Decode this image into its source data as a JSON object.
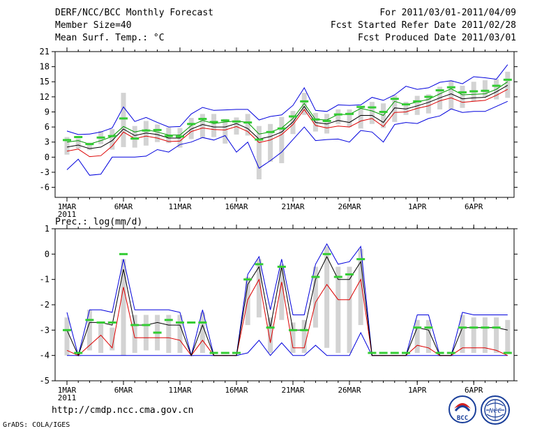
{
  "header": {
    "title": "DERF/NCC/BCC Monthly Forecast",
    "member_size": "Member Size=40",
    "period": "For 2011/03/01-2011/04/09",
    "start_date": "Fcst Started Refer Date 2011/02/28",
    "produced_date": "Fcst Produced Date 2011/03/01"
  },
  "footer": {
    "url": "http://cmdp.ncc.cma.gov.cn",
    "credit": "GrADS: COLA/IGES",
    "logo_bcc": "BCC",
    "logo_ncc": "NCC"
  },
  "colors": {
    "ensemble_max_min": "#0000dd",
    "ensemble_mean": "#000000",
    "spread_lower": "#dd0000",
    "median_mark": "#33cc33",
    "box": "#d3d3d3"
  },
  "chart_data": [
    {
      "type": "box-line",
      "title": "Mean Surf. Temp.: °C",
      "xlabel": "",
      "ylabel": "°C",
      "ylim": [
        -8,
        21
      ],
      "yticks": [
        -6,
        -3,
        0,
        3,
        6,
        9,
        12,
        15,
        18,
        21
      ],
      "x_tick_labels": [
        "1MAR",
        "6MAR",
        "11MAR",
        "16MAR",
        "21MAR",
        "26MAR",
        "1APR",
        "6APR"
      ],
      "x_tick_days": [
        1,
        6,
        11,
        16,
        21,
        26,
        32,
        37
      ],
      "year_label": "2011",
      "days": [
        1,
        2,
        3,
        4,
        5,
        6,
        7,
        8,
        9,
        10,
        11,
        12,
        13,
        14,
        15,
        16,
        17,
        18,
        19,
        20,
        21,
        22,
        23,
        24,
        25,
        26,
        27,
        28,
        29,
        30,
        31,
        32,
        33,
        34,
        35,
        36,
        37,
        38,
        39,
        40
      ],
      "series": [
        {
          "name": "max",
          "values": [
            5.2,
            4.5,
            4.6,
            5.0,
            5.8,
            10.0,
            7.1,
            7.9,
            6.9,
            6.0,
            6.1,
            8.6,
            9.9,
            9.3,
            9.4,
            9.5,
            9.5,
            7.4,
            8.1,
            8.4,
            10.3,
            13.8,
            9.3,
            9.1,
            10.4,
            10.3,
            10.4,
            11.9,
            11.3,
            12.4,
            14.1,
            13.5,
            13.8,
            14.9,
            15.2,
            14.6,
            16.0,
            15.8,
            15.5,
            18.4
          ]
        },
        {
          "name": "mean",
          "values": [
            2.0,
            2.4,
            1.7,
            2.0,
            3.3,
            5.6,
            4.3,
            4.8,
            4.5,
            3.8,
            3.8,
            5.6,
            6.5,
            6.0,
            6.0,
            6.7,
            5.7,
            3.6,
            4.1,
            5.0,
            7.0,
            10.1,
            6.9,
            6.6,
            7.3,
            6.9,
            8.3,
            8.3,
            6.9,
            9.8,
            9.6,
            10.2,
            10.9,
            11.8,
            12.6,
            11.6,
            11.8,
            11.9,
            13.0,
            14.3
          ]
        },
        {
          "name": "upper",
          "values": [
            3.0,
            3.3,
            2.6,
            3.3,
            4.1,
            6.1,
            5.0,
            5.5,
            5.0,
            4.4,
            4.4,
            6.3,
            7.3,
            6.7,
            7.0,
            7.2,
            6.9,
            4.6,
            5.0,
            5.8,
            7.7,
            10.7,
            7.5,
            7.4,
            8.5,
            8.5,
            9.7,
            9.2,
            8.3,
            11.1,
            10.4,
            11.0,
            11.5,
            12.6,
            13.6,
            12.4,
            12.5,
            12.6,
            13.5,
            15.0
          ]
        },
        {
          "name": "lower",
          "values": [
            1.2,
            1.6,
            0.1,
            0.3,
            2.2,
            5.0,
            3.7,
            4.2,
            3.8,
            3.1,
            3.2,
            5.1,
            5.8,
            5.5,
            5.4,
            6.1,
            5.1,
            2.9,
            3.4,
            4.5,
            6.5,
            9.5,
            6.3,
            5.8,
            6.2,
            6.0,
            7.2,
            7.7,
            6.1,
            8.9,
            9.0,
            9.7,
            10.2,
            11.2,
            11.8,
            10.9,
            11.1,
            11.3,
            12.3,
            13.5
          ]
        },
        {
          "name": "min",
          "values": [
            -2.5,
            -0.4,
            -3.6,
            -3.4,
            0.0,
            0.0,
            0.0,
            0.2,
            1.5,
            1.0,
            2.5,
            3.0,
            3.9,
            3.4,
            4.3,
            1.0,
            3.0,
            -2.2,
            -0.7,
            1.0,
            3.5,
            6.0,
            3.3,
            3.5,
            3.6,
            3.0,
            5.3,
            5.0,
            3.0,
            6.5,
            6.9,
            6.7,
            7.7,
            8.2,
            9.6,
            8.9,
            9.1,
            9.1,
            10.1,
            11.1
          ]
        },
        {
          "name": "box_high",
          "values": [
            4.0,
            3.7,
            2.9,
            5.2,
            5.6,
            12.8,
            6.2,
            7.2,
            6.5,
            5.9,
            5.8,
            7.8,
            8.6,
            8.6,
            7.6,
            7.9,
            8.6,
            6.2,
            6.6,
            8.0,
            9.2,
            12.8,
            8.8,
            8.6,
            9.5,
            9.5,
            9.9,
            11.0,
            10.7,
            12.3,
            11.0,
            12.2,
            12.5,
            14.0,
            15.2,
            14.2,
            15.0,
            15.3,
            15.5,
            17.0
          ]
        },
        {
          "name": "box_low",
          "values": [
            0.5,
            1.7,
            1.4,
            2.6,
            1.5,
            2.0,
            1.9,
            2.3,
            3.0,
            2.8,
            1.9,
            3.6,
            3.8,
            4.0,
            2.7,
            4.5,
            4.3,
            -4.4,
            -0.9,
            -1.2,
            4.6,
            8.4,
            5.1,
            4.7,
            6.6,
            6.0,
            5.7,
            6.6,
            5.8,
            7.0,
            8.4,
            8.4,
            8.7,
            9.5,
            9.5,
            9.8,
            11.1,
            12.0,
            11.5,
            11.8
          ]
        },
        {
          "name": "median",
          "values": [
            3.4,
            4.0,
            2.6,
            3.9,
            4.2,
            7.7,
            3.7,
            5.3,
            5.4,
            4.2,
            4.1,
            6.6,
            7.6,
            7.0,
            7.3,
            7.1,
            6.9,
            3.5,
            5.0,
            5.7,
            8.1,
            11.1,
            7.5,
            7.2,
            8.5,
            8.6,
            10.0,
            9.9,
            9.0,
            11.6,
            10.5,
            11.1,
            12.0,
            13.3,
            13.9,
            12.9,
            13.1,
            13.2,
            14.2,
            15.4
          ]
        }
      ]
    },
    {
      "type": "box-line",
      "title": "Prec.: log(mm/d)",
      "xlabel": "",
      "ylabel": "log(mm/d)",
      "ylim": [
        -5,
        1
      ],
      "yticks": [
        -5,
        -4,
        -3,
        -2,
        -1,
        0,
        1
      ],
      "x_tick_labels": [
        "1MAR",
        "6MAR",
        "11MAR",
        "16MAR",
        "21MAR",
        "26MAR",
        "1APR",
        "6APR"
      ],
      "x_tick_days": [
        1,
        6,
        11,
        16,
        21,
        26,
        32,
        37
      ],
      "year_label": "2011",
      "days": [
        1,
        2,
        3,
        4,
        5,
        6,
        7,
        8,
        9,
        10,
        11,
        12,
        13,
        14,
        15,
        16,
        17,
        18,
        19,
        20,
        21,
        22,
        23,
        24,
        25,
        26,
        27,
        28,
        29,
        30,
        31,
        32,
        33,
        34,
        35,
        36,
        37,
        38,
        39,
        40
      ],
      "series": [
        {
          "name": "max",
          "values": [
            -2.3,
            -4.0,
            -2.2,
            -2.2,
            -2.3,
            -0.2,
            -2.2,
            -2.2,
            -2.2,
            -2.2,
            -2.3,
            -4.0,
            -2.2,
            -4.0,
            -4.0,
            -4.0,
            -0.8,
            -0.1,
            -2.2,
            -0.2,
            -2.4,
            -2.4,
            -0.4,
            0.4,
            -0.4,
            -0.3,
            0.3,
            -4.0,
            -4.0,
            -4.0,
            -4.0,
            -2.4,
            -2.4,
            -4.0,
            -4.0,
            -2.3,
            -2.4,
            -2.4,
            -2.4,
            -2.4
          ]
        },
        {
          "name": "mean",
          "values": [
            -3.0,
            -4.0,
            -2.7,
            -2.7,
            -2.8,
            -0.6,
            -2.8,
            -2.8,
            -2.7,
            -2.8,
            -2.8,
            -4.0,
            -2.8,
            -4.0,
            -4.0,
            -4.0,
            -1.2,
            -0.5,
            -2.9,
            -0.5,
            -3.0,
            -3.0,
            -1.0,
            -0.1,
            -1.0,
            -1.0,
            -0.3,
            -4.0,
            -4.0,
            -4.0,
            -4.0,
            -2.9,
            -3.0,
            -4.0,
            -4.0,
            -2.9,
            -2.9,
            -2.9,
            -2.9,
            -3.0
          ]
        },
        {
          "name": "lower",
          "values": [
            -3.8,
            -4.0,
            -3.6,
            -3.2,
            -3.7,
            -1.3,
            -3.3,
            -3.3,
            -3.3,
            -3.3,
            -3.4,
            -4.0,
            -3.4,
            -4.0,
            -4.0,
            -4.0,
            -1.8,
            -1.0,
            -3.5,
            -1.1,
            -3.7,
            -3.7,
            -1.9,
            -1.2,
            -1.8,
            -1.8,
            -1.0,
            -4.0,
            -4.0,
            -4.0,
            -4.0,
            -3.6,
            -3.7,
            -4.0,
            -4.0,
            -3.7,
            -3.7,
            -3.7,
            -3.8,
            -4.0
          ]
        },
        {
          "name": "min",
          "values": [
            -4.0,
            -4.0,
            -4.0,
            -4.0,
            -4.0,
            -4.0,
            -4.0,
            -4.0,
            -4.0,
            -4.0,
            -4.0,
            -4.0,
            -4.0,
            -4.0,
            -4.0,
            -4.0,
            -3.9,
            -3.4,
            -4.0,
            -3.5,
            -4.0,
            -4.0,
            -3.6,
            -4.0,
            -4.0,
            -4.0,
            -3.1,
            -4.0,
            -4.0,
            -4.0,
            -4.0,
            -4.0,
            -4.0,
            -4.0,
            -4.0,
            -4.0,
            -4.0,
            -4.0,
            -4.0,
            -4.0
          ]
        },
        {
          "name": "box_high",
          "values": [
            -2.5,
            -4.0,
            -2.2,
            -2.7,
            -2.9,
            -0.2,
            -2.4,
            -2.4,
            -2.4,
            -2.4,
            -2.4,
            -4.0,
            -2.3,
            -4.0,
            -4.0,
            -4.0,
            -0.9,
            -0.2,
            -2.5,
            -0.4,
            -2.7,
            -2.6,
            -0.5,
            0.3,
            -0.5,
            -0.5,
            0.2,
            -4.0,
            -4.0,
            -4.0,
            -4.0,
            -2.6,
            -2.6,
            -4.0,
            -4.0,
            -2.4,
            -2.5,
            -2.5,
            -2.5,
            -2.6
          ]
        },
        {
          "name": "box_low",
          "values": [
            -4.0,
            -4.0,
            -3.8,
            -3.9,
            -3.8,
            -4.0,
            -3.9,
            -3.8,
            -3.8,
            -3.9,
            -3.9,
            -4.0,
            -3.9,
            -4.0,
            -4.0,
            -4.0,
            -2.8,
            -2.5,
            -3.9,
            -2.6,
            -3.9,
            -3.9,
            -2.9,
            -3.7,
            -3.9,
            -3.9,
            -2.8,
            -4.0,
            -4.0,
            -4.0,
            -4.0,
            -3.9,
            -3.9,
            -4.0,
            -4.0,
            -3.9,
            -3.9,
            -3.9,
            -3.9,
            -3.9
          ]
        },
        {
          "name": "median",
          "values": [
            -3.0,
            -3.9,
            -2.6,
            -2.7,
            -2.7,
            0.0,
            -2.8,
            -2.8,
            -3.1,
            -2.6,
            -2.7,
            -2.7,
            -2.7,
            -3.9,
            -3.9,
            -3.9,
            -1.0,
            -0.4,
            -2.9,
            -0.5,
            -3.0,
            -3.0,
            -0.9,
            0.0,
            -0.9,
            -0.8,
            -0.2,
            -3.9,
            -3.9,
            -3.9,
            -3.9,
            -2.9,
            -2.9,
            -3.9,
            -3.9,
            -2.9,
            -2.9,
            -2.9,
            -2.9,
            -3.9
          ]
        }
      ]
    }
  ]
}
